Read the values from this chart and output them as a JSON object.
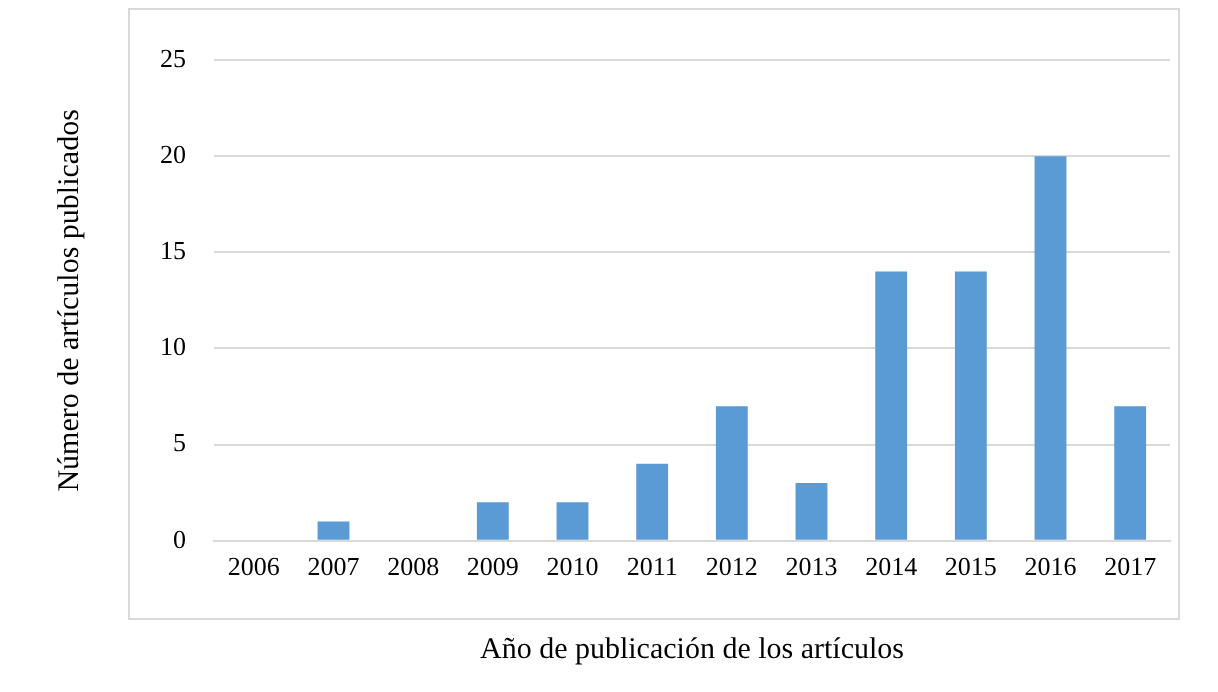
{
  "chart_data": {
    "type": "bar",
    "xlabel": "Año de publicación de los artículos",
    "ylabel": "Número de artículos publicados",
    "categories": [
      "2006",
      "2007",
      "2008",
      "2009",
      "2010",
      "2011",
      "2012",
      "2013",
      "2014",
      "2015",
      "2016",
      "2017"
    ],
    "values": [
      0,
      1,
      0,
      2,
      2,
      4,
      7,
      3,
      14,
      14,
      20,
      7
    ],
    "color": "#5b9bd5",
    "ylim": [
      0,
      25
    ],
    "yticks": [
      0,
      5,
      10,
      15,
      20,
      25
    ],
    "grid": "y",
    "legend": false
  }
}
